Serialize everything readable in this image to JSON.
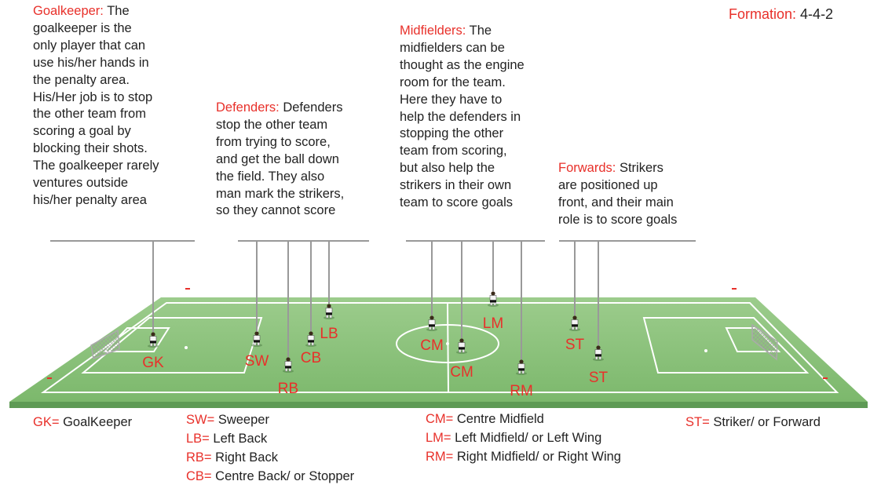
{
  "formation": {
    "label": "Formation:",
    "value": "4-4-2"
  },
  "descriptions": {
    "goalkeeper": {
      "heading": "Goalkeeper:",
      "lines": [
        "The",
        "goalkeeper is the",
        "only player that can",
        "use his/her hands in",
        "the penalty area.",
        "His/Her job is to stop",
        "the other team from",
        "scoring a goal by",
        "blocking their shots.",
        "The goalkeeper rarely",
        "ventures outside",
        "his/her penalty area"
      ]
    },
    "defenders": {
      "heading": "Defenders:",
      "lines": [
        "Defenders",
        "stop the other team",
        "from trying to score,",
        "and get the ball down",
        "the field. They also",
        "man mark the strikers,",
        "so they cannot score"
      ]
    },
    "midfielders": {
      "heading": "Midfielders:",
      "lines": [
        "The",
        "midfielders can be",
        "thought as the engine",
        "room for the team.",
        "Here they have to",
        "help the defenders in",
        "stopping the other",
        "team from scoring,",
        "but also help the",
        "strikers in their own",
        "team to score goals"
      ]
    },
    "forwards": {
      "heading": "Forwards:",
      "lines": [
        "Strikers",
        "are positioned up",
        "front, and their main",
        "role is to score goals"
      ]
    }
  },
  "players": [
    "GK",
    "SW",
    "RB",
    "CB",
    "LB",
    "CM",
    "CM",
    "LM",
    "RM",
    "ST",
    "ST"
  ],
  "legend": {
    "gk": [
      {
        "abbr": "GK=",
        "text": "GoalKeeper"
      }
    ],
    "defenders": [
      {
        "abbr": "SW=",
        "text": "Sweeper"
      },
      {
        "abbr": "LB=",
        "text": "Left Back"
      },
      {
        "abbr": "RB=",
        "text": "Right Back"
      },
      {
        "abbr": "CB=",
        "text": "Centre Back/ or Stopper"
      }
    ],
    "midfield": [
      {
        "abbr": "CM=",
        "text": "Centre Midfield"
      },
      {
        "abbr": "LM=",
        "text": "Left Midfield/ or Left Wing"
      },
      {
        "abbr": "RM=",
        "text": "Right Midfield/ or Right Wing"
      }
    ],
    "striker": [
      {
        "abbr": "ST=",
        "text": "Striker/ or Forward"
      }
    ]
  },
  "colors": {
    "label": "#e8302a",
    "pitch": "#86c078",
    "pitch_edge": "#5e9a55",
    "lines": "#ffffff",
    "text": "#222222"
  }
}
